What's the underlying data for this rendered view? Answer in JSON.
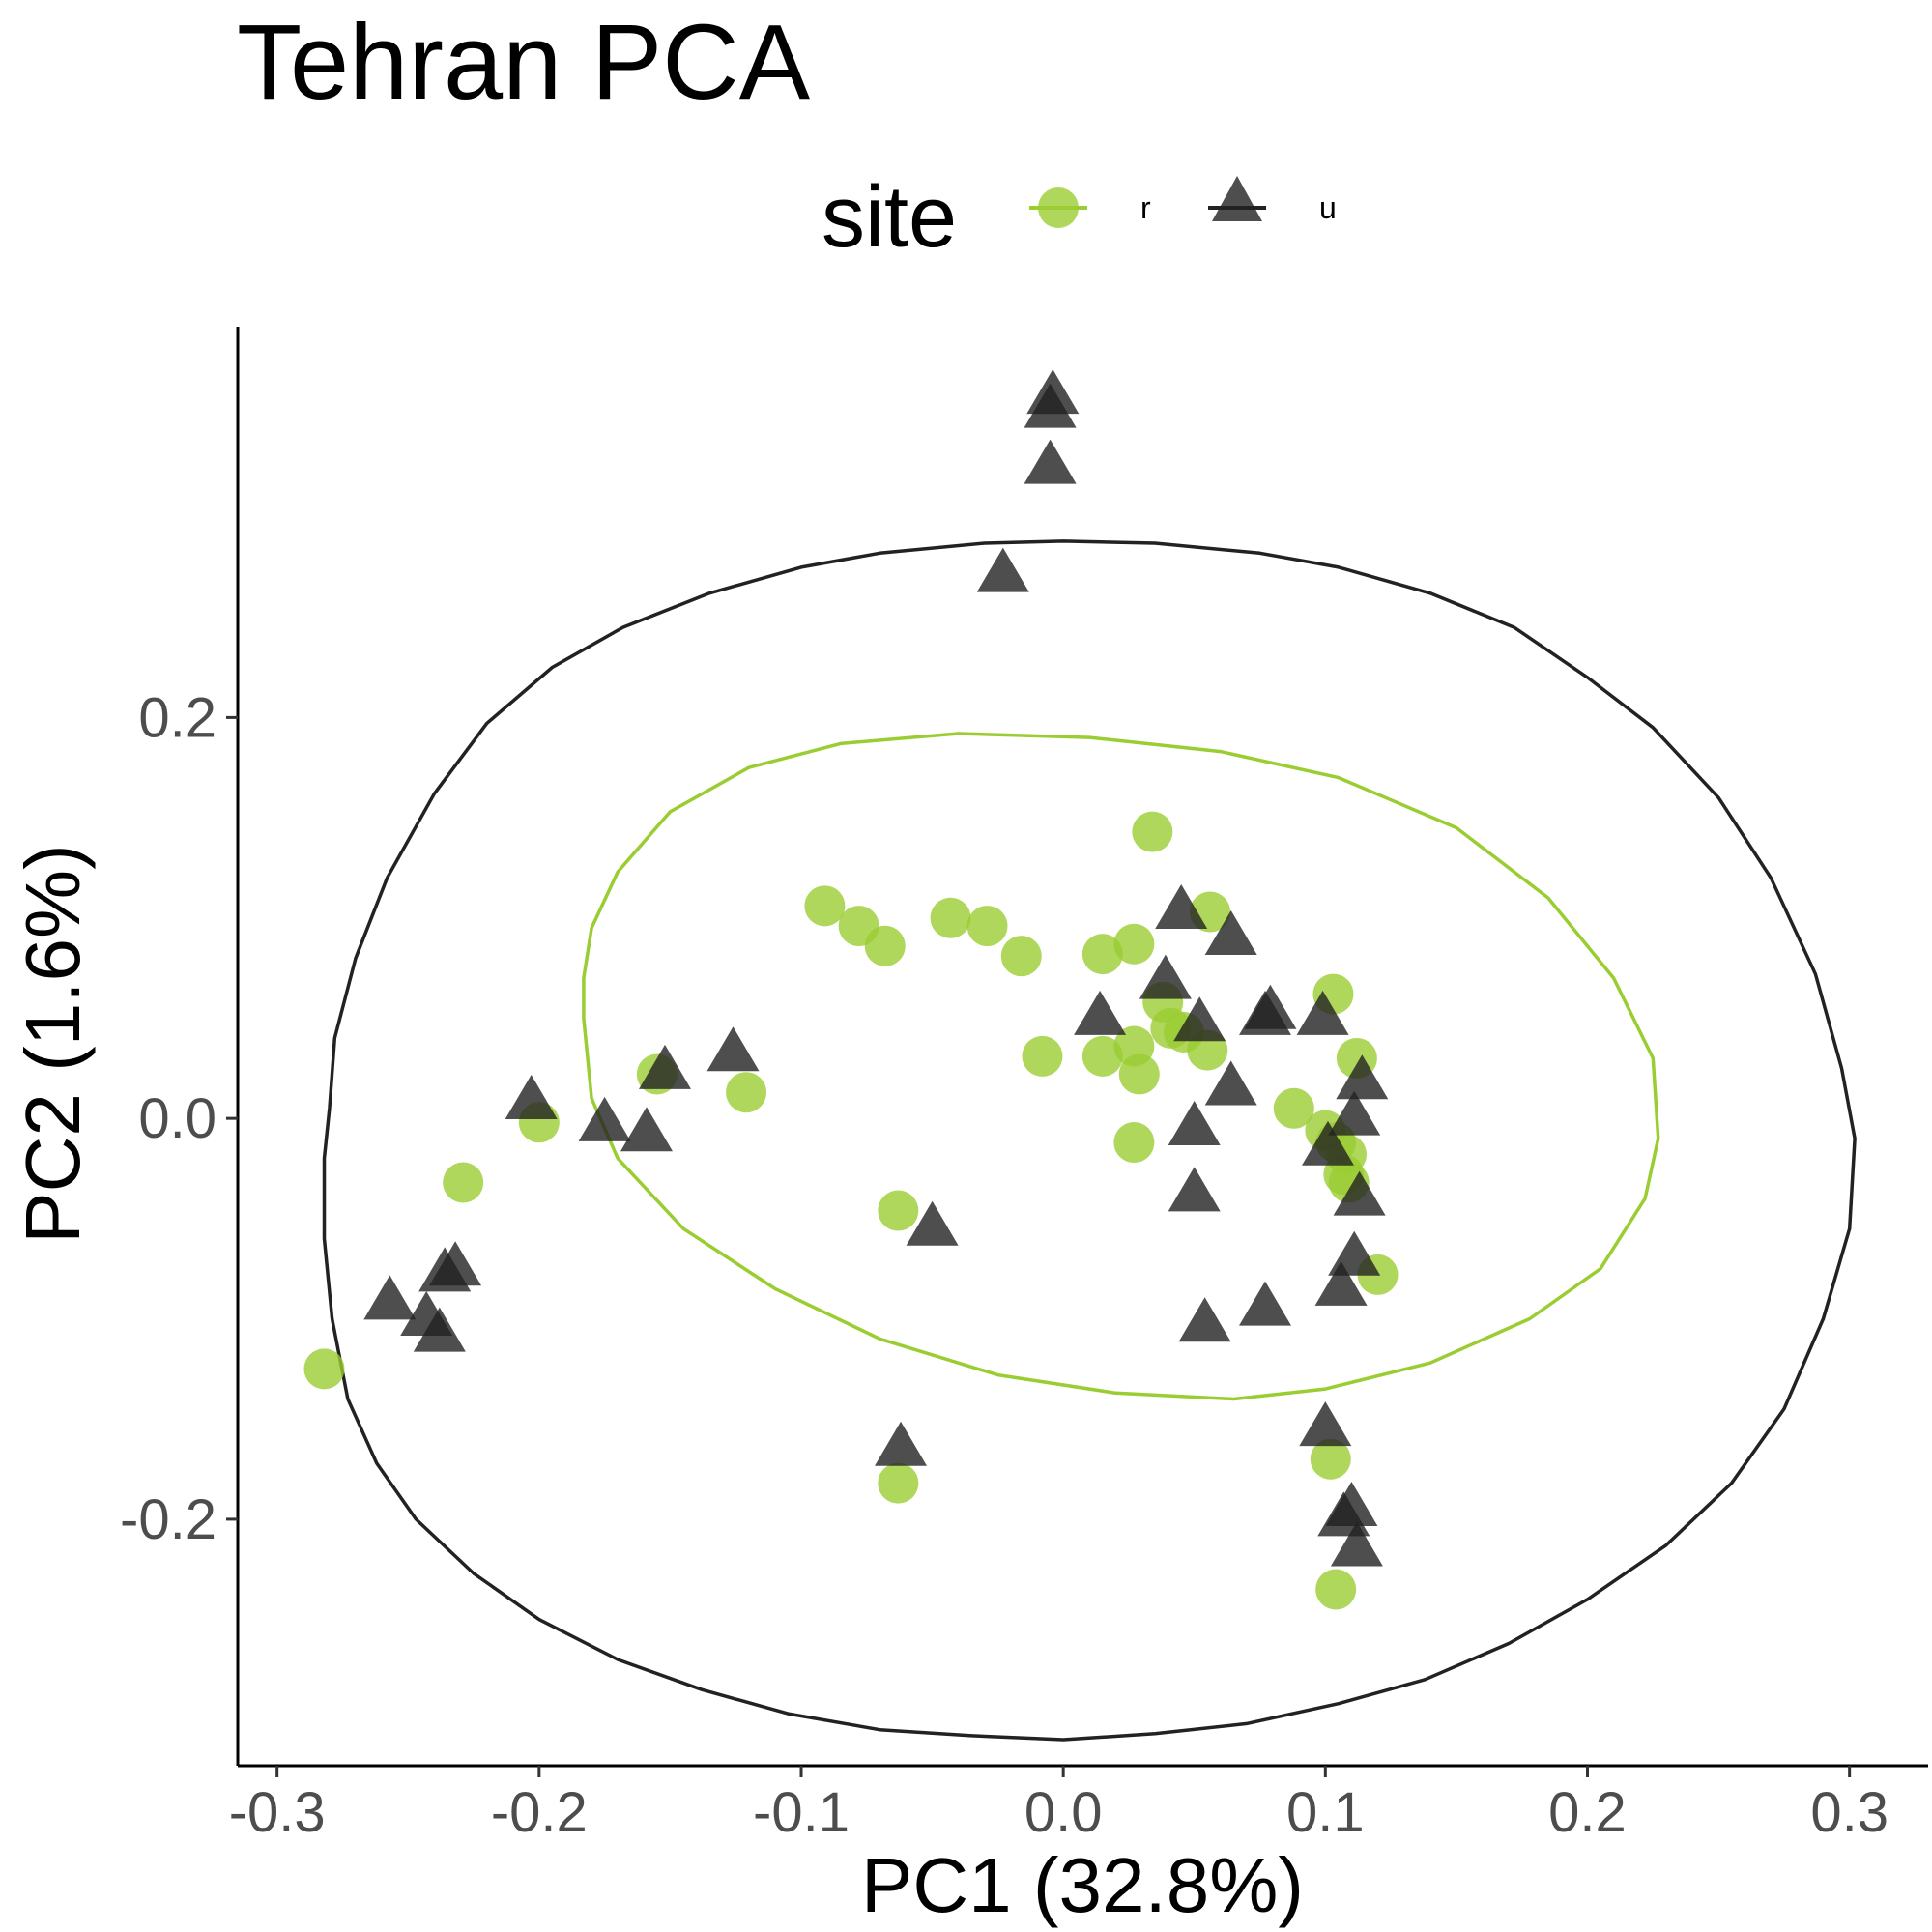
{
  "chart_data": {
    "type": "scatter",
    "title": "Tehran PCA",
    "xlabel": "PC1 (32.8%)",
    "ylabel": "PC2 (1.6%)",
    "xlim": [
      -0.315,
      0.33
    ],
    "ylim": [
      -0.323,
      0.395
    ],
    "x_ticks": [
      -0.3,
      -0.2,
      -0.1,
      0.0,
      0.1,
      0.2,
      0.3
    ],
    "x_tick_labels": [
      "-0.3",
      "-0.2",
      "-0.1",
      "0.0",
      "0.1",
      "0.2",
      "0.3"
    ],
    "y_ticks": [
      -0.2,
      0.0,
      0.2
    ],
    "y_tick_labels": [
      "-0.2",
      "0.0",
      "0.2"
    ],
    "grid": false,
    "legend": {
      "title": "site",
      "placement": "top",
      "entries": [
        {
          "label": "r",
          "shape": "circle",
          "color": "#9ACD32"
        },
        {
          "label": "u",
          "shape": "triangle",
          "color": "#222222"
        }
      ]
    },
    "series": [
      {
        "name": "r",
        "shape": "circle",
        "color": "#9ACD32",
        "points": [
          [
            -0.282,
            -0.125
          ],
          [
            -0.229,
            -0.032
          ],
          [
            -0.2,
            -0.002
          ],
          [
            -0.155,
            0.022
          ],
          [
            -0.121,
            0.013
          ],
          [
            -0.091,
            0.106
          ],
          [
            -0.078,
            0.096
          ],
          [
            -0.068,
            0.086
          ],
          [
            -0.043,
            0.1
          ],
          [
            -0.029,
            0.096
          ],
          [
            -0.016,
            0.081
          ],
          [
            -0.008,
            0.031
          ],
          [
            0.015,
            0.082
          ],
          [
            0.027,
            0.087
          ],
          [
            0.034,
            0.143
          ],
          [
            0.056,
            0.103
          ],
          [
            0.038,
            0.058
          ],
          [
            0.041,
            0.045
          ],
          [
            0.046,
            0.043
          ],
          [
            0.055,
            0.034
          ],
          [
            0.027,
            0.036
          ],
          [
            0.015,
            0.031
          ],
          [
            0.029,
            0.022
          ],
          [
            0.027,
            -0.012
          ],
          [
            0.088,
            0.005
          ],
          [
            0.103,
            0.062
          ],
          [
            0.112,
            0.03
          ],
          [
            0.1,
            -0.006
          ],
          [
            0.104,
            -0.012
          ],
          [
            0.108,
            -0.018
          ],
          [
            0.107,
            -0.028
          ],
          [
            0.109,
            -0.032
          ],
          [
            0.12,
            -0.078
          ],
          [
            -0.063,
            -0.046
          ],
          [
            -0.063,
            -0.182
          ],
          [
            0.102,
            -0.17
          ],
          [
            0.104,
            -0.235
          ]
        ]
      },
      {
        "name": "u",
        "shape": "triangle",
        "color": "#222222",
        "points": [
          [
            -0.257,
            -0.092
          ],
          [
            -0.243,
            -0.1
          ],
          [
            -0.238,
            -0.108
          ],
          [
            -0.236,
            -0.078
          ],
          [
            -0.232,
            -0.075
          ],
          [
            -0.203,
            0.008
          ],
          [
            -0.175,
            -0.003
          ],
          [
            -0.159,
            -0.008
          ],
          [
            -0.152,
            0.023
          ],
          [
            -0.126,
            0.032
          ],
          [
            -0.05,
            -0.055
          ],
          [
            -0.062,
            -0.165
          ],
          [
            -0.023,
            0.271
          ],
          [
            -0.005,
            0.325
          ],
          [
            -0.005,
            0.353
          ],
          [
            -0.004,
            0.36
          ],
          [
            0.014,
            0.05
          ],
          [
            0.045,
            0.103
          ],
          [
            0.039,
            0.068
          ],
          [
            0.052,
            0.047
          ],
          [
            0.064,
            0.09
          ],
          [
            0.064,
            0.015
          ],
          [
            0.079,
            0.053
          ],
          [
            0.077,
            0.05
          ],
          [
            0.099,
            0.05
          ],
          [
            0.114,
            0.018
          ],
          [
            0.111,
            0.0
          ],
          [
            0.101,
            -0.015
          ],
          [
            0.113,
            -0.04
          ],
          [
            0.05,
            -0.005
          ],
          [
            0.05,
            -0.038
          ],
          [
            0.054,
            -0.103
          ],
          [
            0.077,
            -0.095
          ],
          [
            0.111,
            -0.07
          ],
          [
            0.106,
            -0.085
          ],
          [
            0.1,
            -0.155
          ],
          [
            0.11,
            -0.195
          ],
          [
            0.107,
            -0.2
          ],
          [
            0.112,
            -0.215
          ]
        ]
      }
    ],
    "ellipses": [
      {
        "series": "r",
        "color": "#9ACD32",
        "points": [
          [
            -0.183,
            0.05
          ],
          [
            -0.183,
            0.07
          ],
          [
            -0.18,
            0.095
          ],
          [
            -0.17,
            0.123
          ],
          [
            -0.15,
            0.153
          ],
          [
            -0.12,
            0.175
          ],
          [
            -0.085,
            0.187
          ],
          [
            -0.04,
            0.192
          ],
          [
            0.01,
            0.19
          ],
          [
            0.06,
            0.183
          ],
          [
            0.105,
            0.17
          ],
          [
            0.15,
            0.145
          ],
          [
            0.185,
            0.11
          ],
          [
            0.21,
            0.07
          ],
          [
            0.225,
            0.03
          ],
          [
            0.227,
            -0.01
          ],
          [
            0.222,
            -0.04
          ],
          [
            0.205,
            -0.075
          ],
          [
            0.178,
            -0.1
          ],
          [
            0.14,
            -0.122
          ],
          [
            0.1,
            -0.135
          ],
          [
            0.065,
            -0.14
          ],
          [
            0.02,
            -0.137
          ],
          [
            -0.025,
            -0.128
          ],
          [
            -0.07,
            -0.11
          ],
          [
            -0.11,
            -0.085
          ],
          [
            -0.145,
            -0.055
          ],
          [
            -0.17,
            -0.02
          ],
          [
            -0.18,
            0.01
          ],
          [
            -0.183,
            0.05
          ]
        ]
      },
      {
        "series": "u",
        "color": "#222222",
        "points": [
          [
            -0.28,
            0.005
          ],
          [
            -0.278,
            0.04
          ],
          [
            -0.27,
            0.08
          ],
          [
            -0.258,
            0.12
          ],
          [
            -0.24,
            0.162
          ],
          [
            -0.22,
            0.197
          ],
          [
            -0.195,
            0.225
          ],
          [
            -0.168,
            0.245
          ],
          [
            -0.135,
            0.262
          ],
          [
            -0.1,
            0.275
          ],
          [
            -0.07,
            0.282
          ],
          [
            -0.03,
            0.287
          ],
          [
            0.0,
            0.288
          ],
          [
            0.035,
            0.287
          ],
          [
            0.075,
            0.282
          ],
          [
            0.105,
            0.275
          ],
          [
            0.14,
            0.262
          ],
          [
            0.172,
            0.245
          ],
          [
            0.2,
            0.22
          ],
          [
            0.225,
            0.195
          ],
          [
            0.25,
            0.16
          ],
          [
            0.27,
            0.12
          ],
          [
            0.287,
            0.072
          ],
          [
            0.297,
            0.025
          ],
          [
            0.302,
            -0.01
          ],
          [
            0.3,
            -0.055
          ],
          [
            0.29,
            -0.1
          ],
          [
            0.275,
            -0.145
          ],
          [
            0.255,
            -0.182
          ],
          [
            0.23,
            -0.213
          ],
          [
            0.2,
            -0.24
          ],
          [
            0.17,
            -0.262
          ],
          [
            0.138,
            -0.28
          ],
          [
            0.105,
            -0.292
          ],
          [
            0.07,
            -0.302
          ],
          [
            0.035,
            -0.307
          ],
          [
            0.0,
            -0.31
          ],
          [
            -0.035,
            -0.308
          ],
          [
            -0.07,
            -0.305
          ],
          [
            -0.105,
            -0.297
          ],
          [
            -0.138,
            -0.285
          ],
          [
            -0.17,
            -0.27
          ],
          [
            -0.2,
            -0.25
          ],
          [
            -0.225,
            -0.227
          ],
          [
            -0.247,
            -0.2
          ],
          [
            -0.262,
            -0.172
          ],
          [
            -0.273,
            -0.14
          ],
          [
            -0.279,
            -0.1
          ],
          [
            -0.282,
            -0.06
          ],
          [
            -0.282,
            -0.02
          ],
          [
            -0.28,
            0.005
          ]
        ]
      }
    ]
  }
}
